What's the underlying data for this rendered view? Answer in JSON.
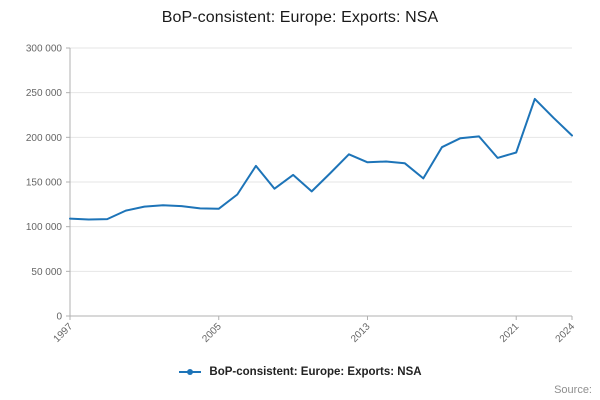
{
  "title": "BoP-consistent: Europe: Exports: NSA",
  "legend": {
    "label": "BoP-consistent: Europe: Exports: NSA"
  },
  "source": "Source:",
  "colors": {
    "line": "#1d74b8",
    "grid": "#e6e6e6",
    "axis": "#b0b0b0",
    "tick_text": "#666666"
  },
  "chart_data": {
    "type": "line",
    "title": "BoP-consistent: Europe: Exports: NSA",
    "xlabel": "",
    "ylabel": "",
    "grid": "horizontal",
    "legend_position": "bottom",
    "ylim": [
      0,
      300000
    ],
    "y_ticks": [
      0,
      50000,
      100000,
      150000,
      200000,
      250000,
      300000
    ],
    "y_tick_labels": [
      "0",
      "50 000",
      "100 000",
      "150 000",
      "200 000",
      "250 000",
      "300 000"
    ],
    "x_tick_years": [
      1997,
      2005,
      2013,
      2021,
      2024
    ],
    "x": [
      1997,
      1998,
      1999,
      2000,
      2001,
      2002,
      2003,
      2004,
      2005,
      2006,
      2007,
      2008,
      2009,
      2010,
      2011,
      2012,
      2013,
      2014,
      2015,
      2016,
      2017,
      2018,
      2019,
      2020,
      2021,
      2022,
      2023,
      2024
    ],
    "series": [
      {
        "name": "BoP-consistent: Europe: Exports: NSA",
        "values": [
          109000,
          108000,
          108500,
          118000,
          122500,
          124000,
          123000,
          120500,
          120000,
          136000,
          168000,
          142500,
          158000,
          139500,
          160000,
          181000,
          172000,
          173000,
          171000,
          154000,
          189000,
          199000,
          201000,
          177000,
          183000,
          243000,
          222000,
          202000
        ]
      }
    ]
  }
}
